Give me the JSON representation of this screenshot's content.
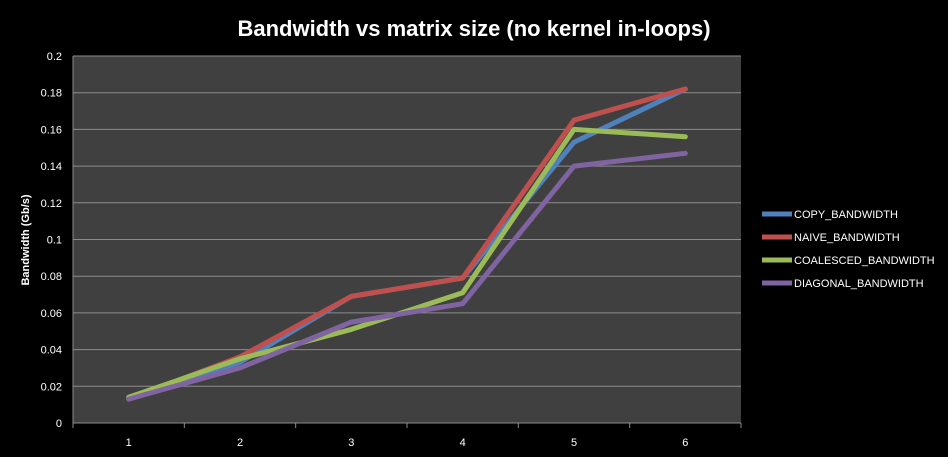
{
  "chart_data": {
    "type": "line",
    "title": "Bandwidth vs matrix size (no kernel in-loops)",
    "xlabel": "",
    "ylabel": "Bandwidth  (Gb/s)",
    "categories": [
      "1",
      "2",
      "3",
      "4",
      "5",
      "6"
    ],
    "ylim": [
      0,
      0.2
    ],
    "yticks": [
      "0",
      "0.02",
      "0.04",
      "0.06",
      "0.08",
      "0.1",
      "0.12",
      "0.14",
      "0.16",
      "0.18",
      "0.2"
    ],
    "grid": true,
    "legend_position": "right",
    "plot_background": "#404040",
    "series": [
      {
        "name": "COPY_BANDWIDTH",
        "color": "#4f81bd",
        "values": [
          0.013,
          0.033,
          0.069,
          0.079,
          0.153,
          0.182
        ]
      },
      {
        "name": "NAIVE_BANDWIDTH",
        "color": "#c0504d",
        "values": [
          0.013,
          0.036,
          0.069,
          0.079,
          0.165,
          0.182
        ]
      },
      {
        "name": "COALESCED_BANDWIDTH",
        "color": "#9bbb59",
        "values": [
          0.014,
          0.035,
          0.051,
          0.071,
          0.16,
          0.156
        ]
      },
      {
        "name": "DIAGONAL_BANDWIDTH",
        "color": "#8064a2",
        "values": [
          0.013,
          0.03,
          0.055,
          0.065,
          0.14,
          0.147
        ]
      }
    ]
  }
}
